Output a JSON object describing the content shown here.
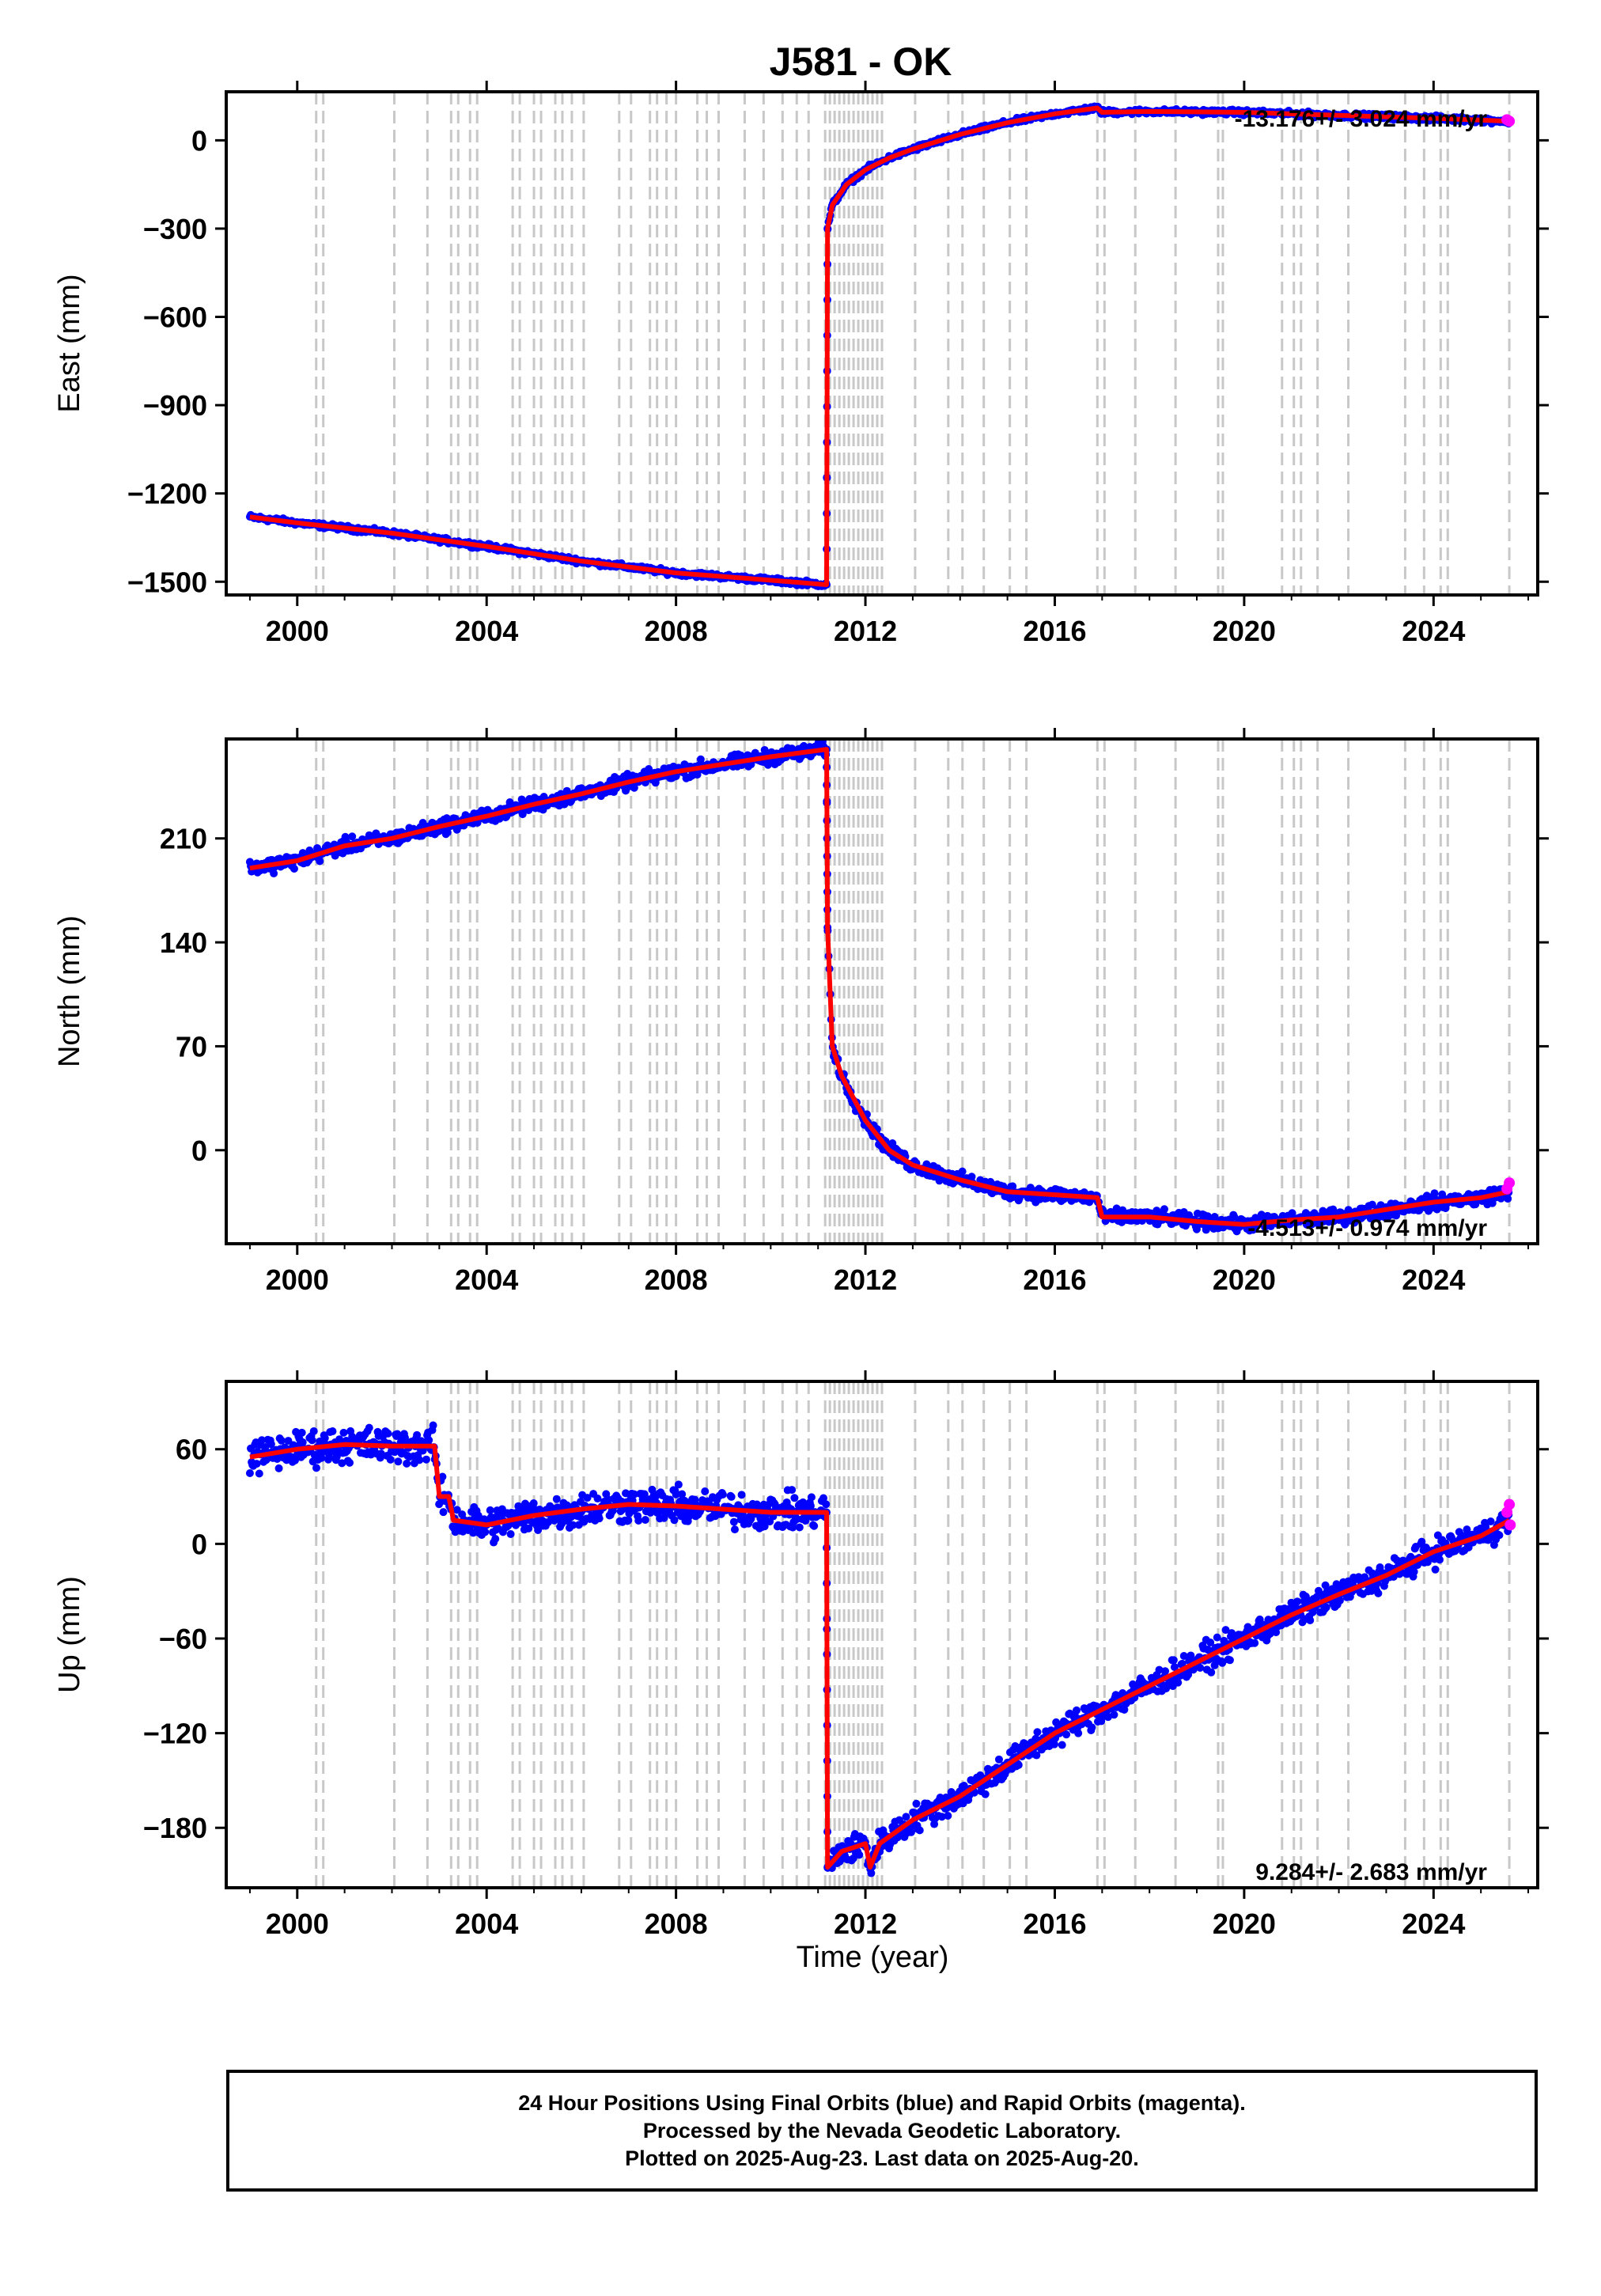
{
  "title": "J581 - OK",
  "xlabel": "Time (year)",
  "caption": [
    "24 Hour Positions Using Final Orbits (blue) and Rapid Orbits (magenta).",
    "Processed by the Nevada Geodetic Laboratory.",
    "Plotted on 2025-Aug-23. Last data on 2025-Aug-20."
  ],
  "colors": {
    "final_orbits": "#0000ff",
    "rapid_orbits": "#ff00ff",
    "model": "#ff0000",
    "event_lines": "#c8c8c8"
  },
  "event_years": [
    2000.4,
    2000.55,
    2002.05,
    2002.75,
    2003.25,
    2003.4,
    2003.65,
    2003.8,
    2004.55,
    2004.7,
    2005.0,
    2005.15,
    2005.45,
    2005.6,
    2005.8,
    2006.05,
    2006.8,
    2007.05,
    2007.45,
    2007.6,
    2007.8,
    2008.0,
    2008.45,
    2008.65,
    2008.9,
    2009.45,
    2009.85,
    2010.25,
    2010.55,
    2010.8,
    2011.15,
    2011.25,
    2011.35,
    2011.45,
    2011.55,
    2011.65,
    2011.75,
    2011.85,
    2011.95,
    2012.05,
    2012.15,
    2012.25,
    2012.35,
    2013.05,
    2013.75,
    2014.05,
    2014.5,
    2015.05,
    2015.4,
    2016.9,
    2017.05,
    2017.7,
    2018.55,
    2019.45,
    2019.55,
    2020.8,
    2021.05,
    2021.2,
    2021.55,
    2022.2,
    2023.4,
    2023.8,
    2024.15,
    2024.3,
    2025.6
  ],
  "chart_data": [
    {
      "type": "scatter",
      "ylabel": "East (mm)",
      "xlim": [
        1998.5,
        2026.2
      ],
      "ylim": [
        -1545,
        165
      ],
      "yticks": [
        0,
        -300,
        -600,
        -900,
        -1200,
        -1500
      ],
      "xticks": [
        2000,
        2004,
        2008,
        2012,
        2016,
        2020,
        2024
      ],
      "rate_label": "-13.176+/- 3.024 mm/yr",
      "model": [
        [
          1999.0,
          -1280
        ],
        [
          2000.0,
          -1300
        ],
        [
          2002.0,
          -1335
        ],
        [
          2004.0,
          -1380
        ],
        [
          2006.0,
          -1430
        ],
        [
          2008.0,
          -1470
        ],
        [
          2010.0,
          -1495
        ],
        [
          2011.18,
          -1510
        ],
        [
          2011.2,
          -300
        ],
        [
          2011.3,
          -220
        ],
        [
          2011.6,
          -150
        ],
        [
          2012.0,
          -100
        ],
        [
          2012.5,
          -60
        ],
        [
          2013.0,
          -30
        ],
        [
          2014.0,
          20
        ],
        [
          2015.0,
          60
        ],
        [
          2016.0,
          90
        ],
        [
          2016.9,
          110
        ],
        [
          2017.0,
          95
        ],
        [
          2018.0,
          98
        ],
        [
          2020.0,
          95
        ],
        [
          2022.0,
          85
        ],
        [
          2024.0,
          75
        ],
        [
          2025.6,
          65
        ]
      ],
      "rapid_points": [
        [
          2025.55,
          70
        ],
        [
          2025.6,
          65
        ]
      ]
    },
    {
      "type": "scatter",
      "ylabel": "North (mm)",
      "xlim": [
        1998.5,
        2026.2
      ],
      "ylim": [
        -63,
        277
      ],
      "yticks": [
        210,
        140,
        70,
        0
      ],
      "xticks": [
        2000,
        2004,
        2008,
        2012,
        2016,
        2020,
        2024
      ],
      "rate_label": "-4.513+/- 0.974 mm/yr",
      "model": [
        [
          1999.0,
          190
        ],
        [
          2000.0,
          195
        ],
        [
          2001.0,
          205
        ],
        [
          2002.0,
          210
        ],
        [
          2003.0,
          218
        ],
        [
          2004.0,
          225
        ],
        [
          2005.0,
          233
        ],
        [
          2006.0,
          240
        ],
        [
          2007.0,
          248
        ],
        [
          2008.0,
          255
        ],
        [
          2009.0,
          260
        ],
        [
          2010.0,
          265
        ],
        [
          2011.18,
          270
        ],
        [
          2011.2,
          150
        ],
        [
          2011.3,
          70
        ],
        [
          2011.5,
          50
        ],
        [
          2012.0,
          20
        ],
        [
          2012.5,
          0
        ],
        [
          2013.0,
          -10
        ],
        [
          2014.0,
          -20
        ],
        [
          2015.0,
          -28
        ],
        [
          2016.0,
          -30
        ],
        [
          2016.9,
          -32
        ],
        [
          2017.0,
          -45
        ],
        [
          2018.0,
          -45
        ],
        [
          2019.0,
          -48
        ],
        [
          2020.0,
          -50
        ],
        [
          2021.0,
          -47
        ],
        [
          2022.0,
          -45
        ],
        [
          2023.0,
          -40
        ],
        [
          2024.0,
          -35
        ],
        [
          2025.0,
          -32
        ],
        [
          2025.6,
          -28
        ]
      ],
      "rapid_points": [
        [
          2025.55,
          -26
        ],
        [
          2025.6,
          -22
        ]
      ]
    },
    {
      "type": "scatter",
      "ylabel": "Up (mm)",
      "xlim": [
        1998.5,
        2026.2
      ],
      "ylim": [
        -218,
        103
      ],
      "yticks": [
        60,
        0,
        -60,
        -120,
        -180
      ],
      "xticks": [
        2000,
        2004,
        2008,
        2012,
        2016,
        2020,
        2024
      ],
      "rate_label": "9.284+/- 2.683 mm/yr",
      "model": [
        [
          1999.0,
          55
        ],
        [
          2000.0,
          60
        ],
        [
          2001.0,
          63
        ],
        [
          2002.0,
          62
        ],
        [
          2002.9,
          62
        ],
        [
          2003.0,
          30
        ],
        [
          2003.2,
          30
        ],
        [
          2003.3,
          15
        ],
        [
          2004.0,
          12
        ],
        [
          2005.0,
          18
        ],
        [
          2006.0,
          22
        ],
        [
          2007.0,
          25
        ],
        [
          2008.0,
          24
        ],
        [
          2009.0,
          22
        ],
        [
          2010.0,
          20
        ],
        [
          2011.18,
          20
        ],
        [
          2011.2,
          -205
        ],
        [
          2011.5,
          -195
        ],
        [
          2012.0,
          -190
        ],
        [
          2012.1,
          -205
        ],
        [
          2012.3,
          -190
        ],
        [
          2013.0,
          -175
        ],
        [
          2014.0,
          -160
        ],
        [
          2015.0,
          -140
        ],
        [
          2016.0,
          -120
        ],
        [
          2017.0,
          -105
        ],
        [
          2018.0,
          -90
        ],
        [
          2019.0,
          -75
        ],
        [
          2020.0,
          -60
        ],
        [
          2021.0,
          -45
        ],
        [
          2022.0,
          -32
        ],
        [
          2023.0,
          -20
        ],
        [
          2024.0,
          -5
        ],
        [
          2025.0,
          5
        ],
        [
          2025.6,
          15
        ]
      ],
      "rapid_points": [
        [
          2025.55,
          20
        ],
        [
          2025.6,
          25
        ],
        [
          2025.62,
          12
        ]
      ]
    }
  ]
}
